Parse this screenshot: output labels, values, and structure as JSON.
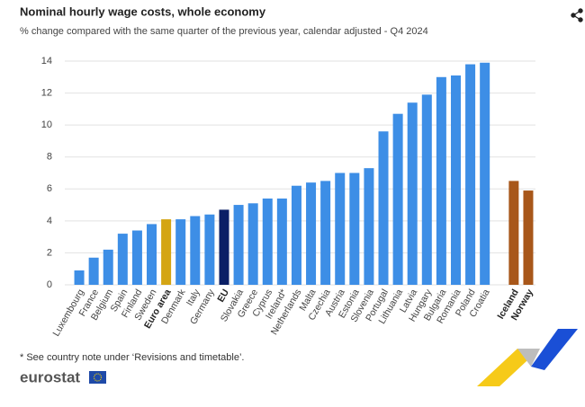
{
  "chart_data": {
    "type": "bar",
    "title": "Nominal hourly wage costs, whole economy",
    "subtitle": "% change compared with the same quarter of the previous year, calendar adjusted - Q4 2024",
    "categories": [
      "Luxembourg",
      "France",
      "Belgium",
      "Spain",
      "Finland",
      "Sweden",
      "Euro area",
      "Denmark",
      "Italy",
      "Germany",
      "EU",
      "Slovakia",
      "Greece",
      "Cyprus",
      "Ireland*",
      "Netherlands",
      "Malta",
      "Czechia",
      "Austria",
      "Estonia",
      "Slovenia",
      "Portugal",
      "Lithuania",
      "Latvia",
      "Hungary",
      "Bulgaria",
      "Romania",
      "Poland",
      "Croatia",
      null,
      "Iceland",
      "Norway"
    ],
    "values": [
      0.9,
      1.7,
      2.2,
      3.2,
      3.4,
      3.8,
      4.1,
      4.1,
      4.3,
      4.4,
      4.7,
      5.0,
      5.1,
      5.4,
      5.4,
      6.2,
      6.4,
      6.5,
      7.0,
      7.0,
      7.3,
      9.6,
      10.7,
      11.4,
      11.9,
      13.0,
      13.1,
      13.8,
      13.9,
      null,
      6.5,
      5.9
    ],
    "color": "#3d8ee6",
    "colors": [
      "#3d8ee6",
      "#3d8ee6",
      "#3d8ee6",
      "#3d8ee6",
      "#3d8ee6",
      "#3d8ee6",
      "#d4a514",
      "#3d8ee6",
      "#3d8ee6",
      "#3d8ee6",
      "#0b1f66",
      "#3d8ee6",
      "#3d8ee6",
      "#3d8ee6",
      "#3d8ee6",
      "#3d8ee6",
      "#3d8ee6",
      "#3d8ee6",
      "#3d8ee6",
      "#3d8ee6",
      "#3d8ee6",
      "#3d8ee6",
      "#3d8ee6",
      "#3d8ee6",
      "#3d8ee6",
      "#3d8ee6",
      "#3d8ee6",
      "#3d8ee6",
      "#3d8ee6",
      null,
      "#a8571a",
      "#a8571a"
    ],
    "ylim": [
      0,
      14
    ],
    "yticks": [
      0,
      2,
      4,
      6,
      8,
      10,
      12,
      14
    ],
    "grid": true,
    "footnote": "* See country note under ‘Revisions and timetable’.",
    "logo": "eurostat"
  }
}
